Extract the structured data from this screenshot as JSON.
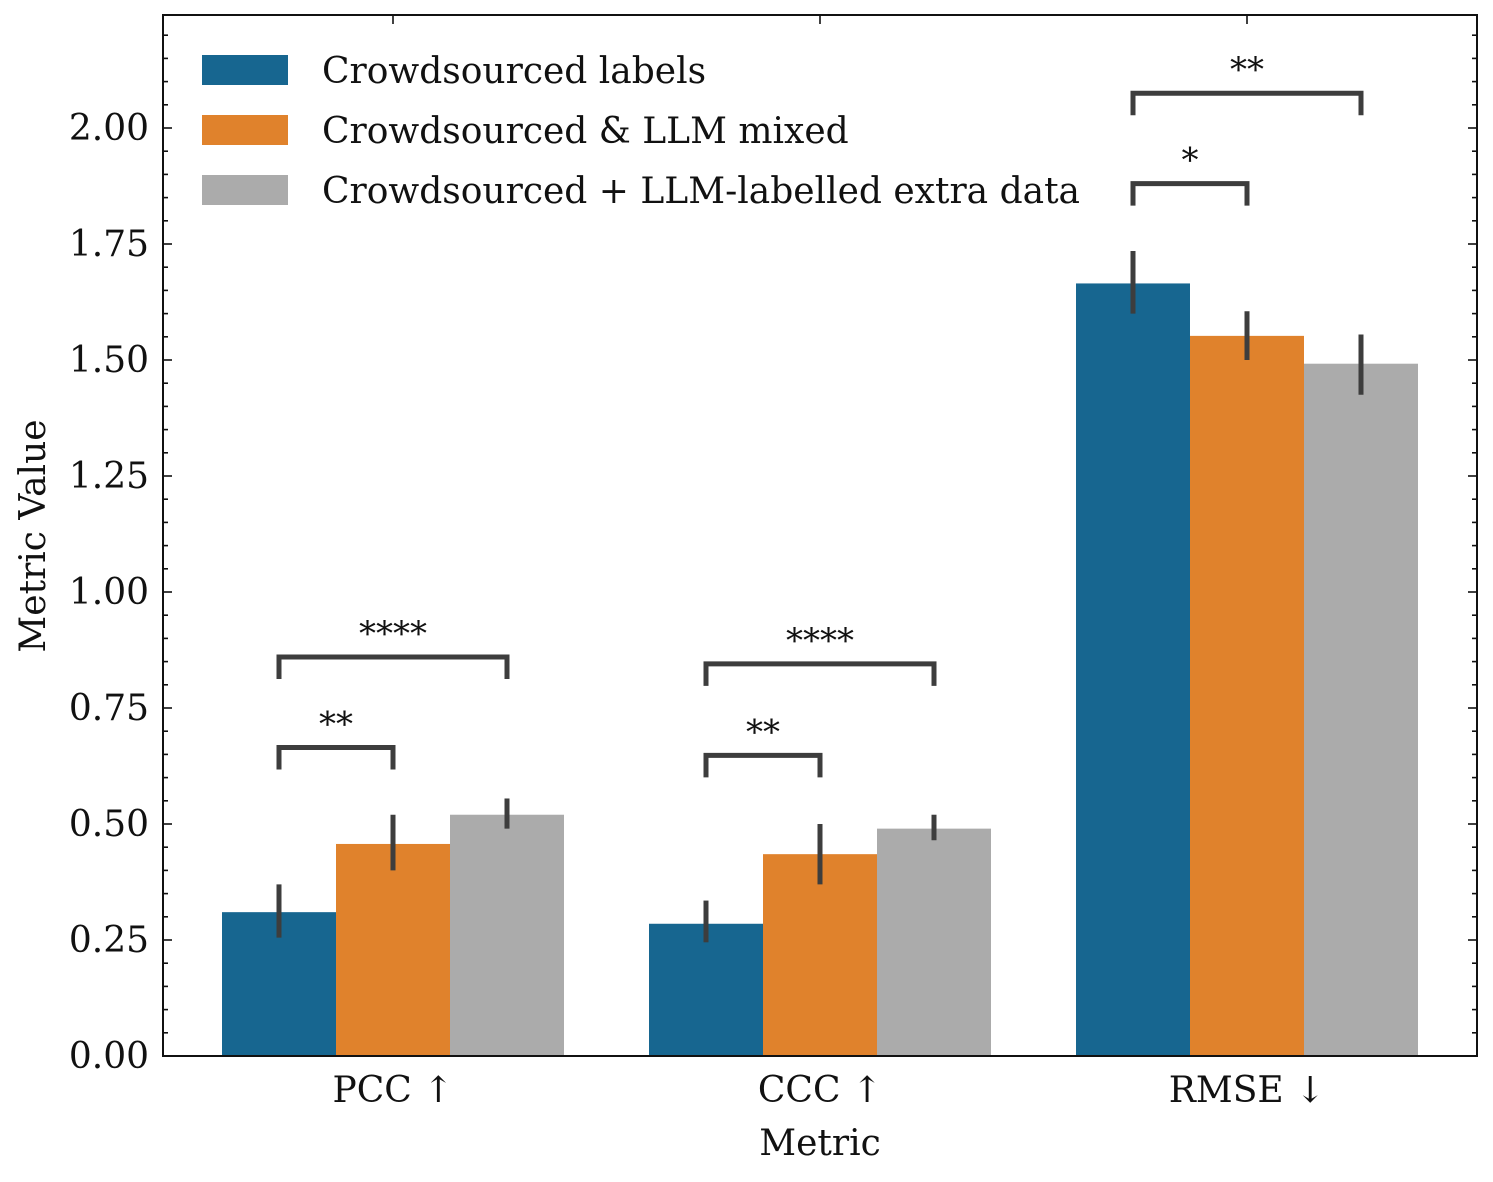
{
  "chart_data": {
    "type": "bar",
    "xlabel": "Metric",
    "ylabel": "Metric Value",
    "ylim": [
      0,
      2.24
    ],
    "yticks": [
      0.0,
      0.25,
      0.5,
      0.75,
      1.0,
      1.25,
      1.5,
      1.75,
      2.0
    ],
    "ytick_labels": [
      "0.00",
      "0.25",
      "0.50",
      "0.75",
      "1.00",
      "1.25",
      "1.50",
      "1.75",
      "2.00"
    ],
    "categories": [
      "PCC ↑",
      "CCC ↑",
      "RMSE ↓"
    ],
    "series": [
      {
        "name": "Crowdsourced labels",
        "color": "#176690",
        "values": [
          0.31,
          0.285,
          1.665
        ],
        "err_low": [
          0.255,
          0.245,
          1.6
        ],
        "err_high": [
          0.37,
          0.335,
          1.735
        ]
      },
      {
        "name": "Crowdsourced & LLM mixed",
        "color": "#e0822c",
        "values": [
          0.457,
          0.435,
          1.552
        ],
        "err_low": [
          0.4,
          0.37,
          1.5
        ],
        "err_high": [
          0.52,
          0.5,
          1.605
        ]
      },
      {
        "name": "Crowdsourced + LLM-labelled extra data",
        "color": "#ababab",
        "values": [
          0.52,
          0.49,
          1.492
        ],
        "err_low": [
          0.49,
          0.465,
          1.425
        ],
        "err_high": [
          0.555,
          0.52,
          1.555
        ]
      }
    ],
    "legend_position": "top-left",
    "significance": [
      {
        "category": 0,
        "from_series": 0,
        "to_series": 1,
        "level": 0.665,
        "label": "**"
      },
      {
        "category": 0,
        "from_series": 0,
        "to_series": 2,
        "level": 0.86,
        "label": "****"
      },
      {
        "category": 1,
        "from_series": 0,
        "to_series": 1,
        "level": 0.648,
        "label": "**"
      },
      {
        "category": 1,
        "from_series": 0,
        "to_series": 2,
        "level": 0.845,
        "label": "****"
      },
      {
        "category": 2,
        "from_series": 0,
        "to_series": 1,
        "level": 1.88,
        "label": "*"
      },
      {
        "category": 2,
        "from_series": 0,
        "to_series": 2,
        "level": 2.075,
        "label": "**"
      }
    ]
  }
}
